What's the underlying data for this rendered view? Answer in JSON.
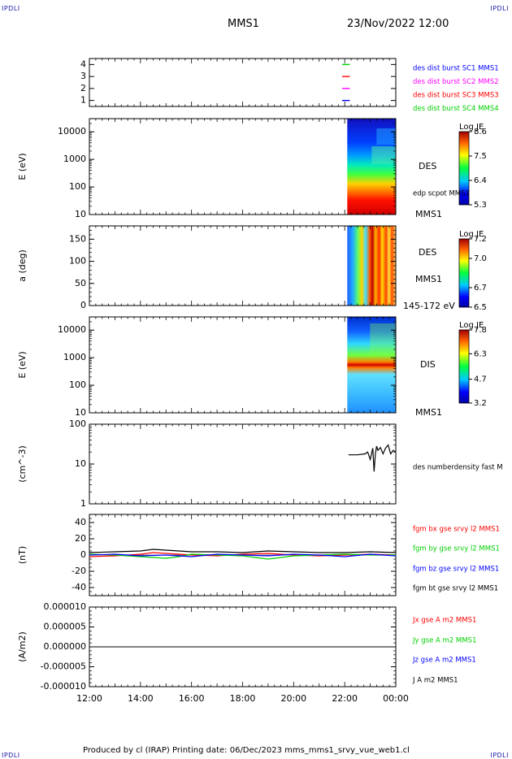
{
  "corners": {
    "tl": "IPDLI",
    "tr": "IPDLI",
    "bl": "IPDLI",
    "br": "IPDLI"
  },
  "header": {
    "spacecraft": "MMS1",
    "datetime": "23/Nov/2022 12:00"
  },
  "footer": {
    "text": "Produced by cl (IRAP)   Printing date: 06/Dec/2023   mms_mms1_srvy_vue_web1.cl"
  },
  "colors": {
    "blue": "#0000ff",
    "magenta": "#ff00ff",
    "red": "#ff0000",
    "green": "#00d000",
    "black": "#000000"
  },
  "chart_data": [
    {
      "type": "line",
      "panel": "availability",
      "yticks": [
        "1",
        "2",
        "3",
        "4"
      ],
      "ylim": [
        0.5,
        4.5
      ],
      "xlim": [
        0,
        12
      ],
      "markers": [
        {
          "value": 4,
          "x": [
            21.9,
            22.2
          ],
          "color": "#00d000"
        },
        {
          "value": 3,
          "x": [
            21.9,
            22.2
          ],
          "color": "#ff0000"
        },
        {
          "value": 2,
          "x": [
            21.9,
            22.2
          ],
          "color": "#ff00ff"
        },
        {
          "value": 1,
          "x": [
            21.9,
            22.2
          ],
          "color": "#0000ff"
        }
      ],
      "legend": [
        {
          "name": "des dist burst SC1 MMS1",
          "color": "#0000ff"
        },
        {
          "name": "des dist burst SC2 MMS2",
          "color": "#ff00ff"
        },
        {
          "name": "des dist burst SC3 MMS3",
          "color": "#ff0000"
        },
        {
          "name": "des dist burst SC4 MMS4",
          "color": "#00d000"
        }
      ]
    },
    {
      "type": "heatmap",
      "panel": "des_energy",
      "ylabel": "E (eV)",
      "yscale": "log",
      "ylim": [
        10,
        30000
      ],
      "yticks": [
        "10",
        "100",
        "1000",
        "10000"
      ],
      "data_xlim": [
        22.1,
        24.0
      ],
      "labels": [
        "DES",
        "edp scpot MMS1",
        "MMS1"
      ],
      "colorbar": {
        "title": "Log JE",
        "ticks": [
          "8.6",
          "7.5",
          "6.4",
          "5.3"
        ],
        "min": 5.3,
        "max": 8.6
      }
    },
    {
      "type": "heatmap",
      "panel": "des_pitch",
      "ylabel": "a (deg)",
      "ylim": [
        0,
        180
      ],
      "yticks": [
        "0",
        "50",
        "100",
        "150"
      ],
      "data_xlim": [
        22.1,
        24.0
      ],
      "labels": [
        "DES",
        "MMS1",
        "145-172 eV"
      ],
      "colorbar": {
        "title": "Log JE",
        "ticks": [
          "7.2",
          "7.0",
          "6.7",
          "6.5"
        ],
        "min": 6.5,
        "max": 7.2
      }
    },
    {
      "type": "heatmap",
      "panel": "dis_energy",
      "ylabel": "E (eV)",
      "yscale": "log",
      "ylim": [
        10,
        30000
      ],
      "yticks": [
        "10",
        "100",
        "1000",
        "10000"
      ],
      "data_xlim": [
        22.1,
        24.0
      ],
      "labels": [
        "DIS",
        "MMS1"
      ],
      "colorbar": {
        "title": "Log JE",
        "ticks": [
          "7.8",
          "6.3",
          "4.7",
          "3.2"
        ],
        "min": 3.2,
        "max": 7.8
      }
    },
    {
      "type": "line",
      "panel": "density",
      "ylabel": "(cm^-3)",
      "yscale": "log",
      "ylim": [
        1,
        100
      ],
      "yticks": [
        "1",
        "10",
        "100"
      ],
      "series": [
        {
          "name": "des numberdensity fast M",
          "color": "#000000",
          "x": [
            22.15,
            22.5,
            22.8,
            22.9,
            23.0,
            23.1,
            23.15,
            23.2,
            23.25,
            23.3,
            23.4,
            23.5,
            23.6,
            23.7,
            23.8,
            23.9,
            24.0
          ],
          "y": [
            17,
            17,
            18,
            20,
            13,
            25,
            6.5,
            18,
            28,
            22,
            26,
            18,
            25,
            30,
            18,
            22,
            20
          ]
        }
      ]
    },
    {
      "type": "line",
      "panel": "magnetic_field",
      "ylabel": "(nT)",
      "ylim": [
        -50,
        50
      ],
      "yticks": [
        "-40",
        "-20",
        "0",
        "20",
        "40"
      ],
      "series": [
        {
          "name": "fgm bx gse srvy l2 MMS1",
          "color": "#ff0000",
          "x": [
            12,
            13,
            14,
            14.5,
            15,
            16,
            17,
            18,
            19,
            20,
            21,
            22,
            23,
            24
          ],
          "y": [
            -2,
            -1,
            1,
            3,
            2,
            0,
            -1,
            1,
            2,
            0,
            -1,
            0,
            1,
            0
          ]
        },
        {
          "name": "fgm by gse srvy l2 MMS1",
          "color": "#00d000",
          "x": [
            12,
            13,
            14,
            15,
            15.5,
            16,
            17,
            18,
            19,
            20,
            21,
            22,
            23,
            24
          ],
          "y": [
            1,
            0,
            -2,
            -4,
            -2,
            1,
            0,
            -1,
            -5,
            -1,
            0,
            1,
            0,
            0
          ]
        },
        {
          "name": "fgm bz gse srvy l2 MMS1",
          "color": "#0000ff",
          "x": [
            12,
            13,
            14,
            15,
            16,
            17,
            18,
            19,
            20,
            21,
            22,
            23,
            24
          ],
          "y": [
            0,
            1,
            -1,
            0,
            -2,
            1,
            0,
            -1,
            1,
            0,
            -2,
            1,
            -1
          ]
        },
        {
          "name": "fgm bt gse srvy l2 MMS1",
          "color": "#000000",
          "x": [
            12,
            13,
            14,
            14.5,
            15,
            16,
            17,
            18,
            19,
            20,
            21,
            22,
            23,
            24
          ],
          "y": [
            3,
            4,
            5,
            7,
            6,
            4,
            4,
            3,
            5,
            4,
            3,
            3,
            4,
            3
          ]
        }
      ]
    },
    {
      "type": "line",
      "panel": "current_density",
      "ylabel": "(A/m2)",
      "ylim": [
        -1e-05,
        1e-05
      ],
      "yticks": [
        "-0.000010",
        "-0.000005",
        "0.000000",
        "0.000005",
        "0.000010"
      ],
      "series": [
        {
          "name": "Jx gse A m2 MMS1",
          "color": "#ff0000",
          "x": [
            12,
            24
          ],
          "y": [
            0,
            0
          ]
        },
        {
          "name": "Jy gse A m2 MMS1",
          "color": "#00d000",
          "x": [
            12,
            24
          ],
          "y": [
            0,
            0
          ]
        },
        {
          "name": "Jz gse A m2 MMS1",
          "color": "#0000ff",
          "x": [
            12,
            24
          ],
          "y": [
            0,
            0
          ]
        },
        {
          "name": "J A m2 MMS1",
          "color": "#000000",
          "x": [
            12,
            24
          ],
          "y": [
            0,
            0
          ]
        }
      ]
    }
  ],
  "xaxis": {
    "ticks": [
      "12:00",
      "14:00",
      "16:00",
      "18:00",
      "20:00",
      "22:00",
      "00:00"
    ],
    "range": [
      12,
      24
    ]
  }
}
